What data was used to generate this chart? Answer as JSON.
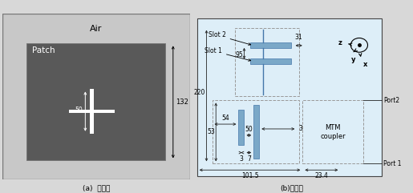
{
  "fig_width": 5.15,
  "fig_height": 2.41,
  "dpi": 100,
  "bg_color": "#d8d8d8",
  "left_panel": {
    "bg_color": "#c8c8c8",
    "patch_color": "#595959",
    "label_air": "Air",
    "label_patch": "Patch",
    "dim_50": "50",
    "dim_132": "132",
    "caption": "(a)  정면도"
  },
  "right_panel": {
    "bg_color": "#ddeef8",
    "slot_color": "#7aA8C8",
    "slot_color2": "#4477AA",
    "dashed_color": "#999999",
    "line_color": "#222222",
    "caption": "(b)회로도",
    "labels": {
      "slot2": "Slot 2",
      "slot1": "Slot 1",
      "dim_95": "95",
      "dim_31": "31",
      "dim_220": "220",
      "dim_54": "54",
      "dim_50": "50",
      "dim_3a": "3",
      "dim_3b": "3",
      "dim_7": "7",
      "dim_53": "53",
      "dim_101_5": "101.5",
      "dim_23_4": "23.4",
      "mtm": "MTM\ncoupler",
      "port2": "Port2",
      "port1": "Port 1",
      "z_label": "z",
      "y_label": "y",
      "x_label": "x"
    }
  }
}
